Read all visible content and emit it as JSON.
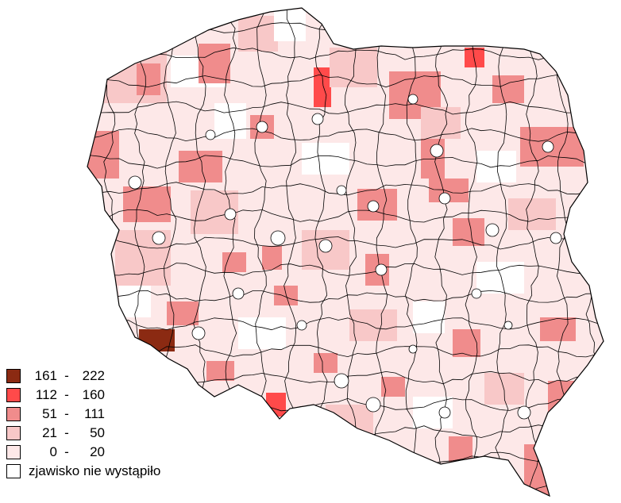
{
  "legend": {
    "classes": [
      {
        "min": "161",
        "max": "222",
        "color": "#8b2a12"
      },
      {
        "min": "112",
        "max": "160",
        "color": "#ff4a4a"
      },
      {
        "min": "51",
        "max": "111",
        "color": "#f08c8c"
      },
      {
        "min": "21",
        "max": "50",
        "color": "#f8c8c8"
      },
      {
        "min": "0",
        "max": "20",
        "color": "#fde8e8"
      }
    ],
    "no_data_label": "zjawisko nie wystąpiło",
    "no_data_color": "#ffffff"
  }
}
